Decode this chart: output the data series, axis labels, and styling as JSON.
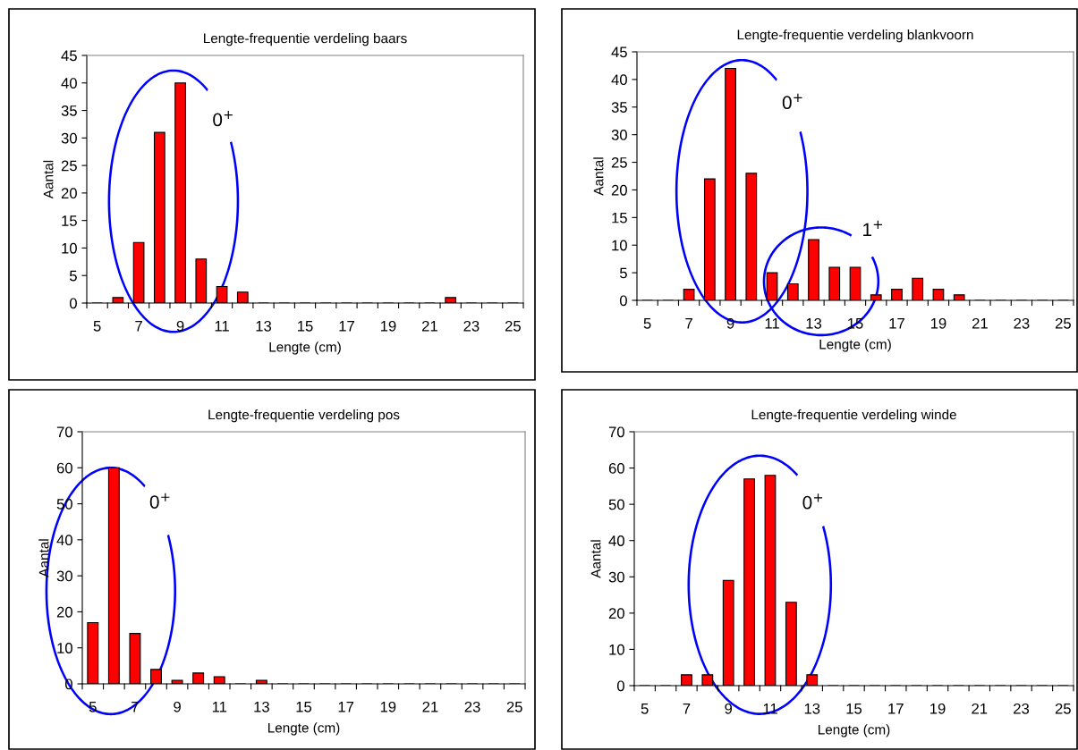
{
  "chart_data": [
    {
      "type": "bar",
      "title": "Lengte-frequentie verdeling baars",
      "xlabel": "Lengte (cm)",
      "ylabel": "Aantal",
      "categories": [
        "5",
        null,
        "7",
        null,
        "9",
        null,
        "11",
        null,
        "13",
        null,
        "15",
        null,
        "17",
        null,
        "19",
        null,
        "21",
        null,
        "23",
        null,
        "25"
      ],
      "values": [
        0,
        1,
        11,
        31,
        40,
        8,
        3,
        2,
        0,
        0,
        0,
        0,
        0,
        0,
        0,
        0,
        0,
        1,
        0,
        0,
        0
      ],
      "color": "#ff0000",
      "ylim": [
        0,
        45
      ],
      "yticks": [
        0,
        5,
        10,
        15,
        20,
        25,
        30,
        35,
        40,
        45
      ],
      "grid": false,
      "legend": false,
      "annotations": [
        "0$^{+}$"
      ]
    },
    {
      "type": "bar",
      "title": "Lengte-frequentie verdeling blankvoorn",
      "xlabel": "Lengte (cm)",
      "ylabel": "Aantal",
      "categories": [
        "5",
        null,
        "7",
        null,
        "9",
        null,
        "11",
        null,
        "13",
        null,
        "15",
        null,
        "17",
        null,
        "19",
        null,
        "21",
        null,
        "23",
        null,
        "25"
      ],
      "values": [
        0,
        0,
        2,
        22,
        42,
        23,
        5,
        3,
        11,
        6,
        6,
        1,
        2,
        4,
        2,
        1,
        0,
        0,
        0,
        0,
        0
      ],
      "color": "#ff0000",
      "ylim": [
        0,
        45
      ],
      "yticks": [
        0,
        5,
        10,
        15,
        20,
        25,
        30,
        35,
        40,
        45
      ],
      "grid": false,
      "legend": false,
      "annotations": [
        "0$^{+}$",
        "1$^{+}$"
      ]
    },
    {
      "type": "bar",
      "title": "Lengte-frequentie verdeling pos",
      "xlabel": "Lengte (cm)",
      "ylabel": "Aantal",
      "categories": [
        "5",
        null,
        "7",
        null,
        "9",
        null,
        "11",
        null,
        "13",
        null,
        "15",
        null,
        "17",
        null,
        "19",
        null,
        "21",
        null,
        "23",
        null,
        "25"
      ],
      "values": [
        17,
        60,
        14,
        4,
        1,
        3,
        2,
        0,
        1,
        0,
        0,
        0,
        0,
        0,
        0,
        0,
        0,
        0,
        0,
        0,
        0
      ],
      "color": "#ff0000",
      "ylim": [
        0,
        70
      ],
      "yticks": [
        0,
        10,
        20,
        30,
        40,
        50,
        60,
        70
      ],
      "grid": false,
      "legend": false,
      "annotations": [
        "0$^{+}$"
      ]
    },
    {
      "type": "bar",
      "title": "Lengte-frequentie verdeling winde",
      "xlabel": "Lengte (cm)",
      "ylabel": "Aantal",
      "categories": [
        "5",
        null,
        "7",
        null,
        "9",
        null,
        "11",
        null,
        "13",
        null,
        "15",
        null,
        "17",
        null,
        "19",
        null,
        "21",
        null,
        "23",
        null,
        "25"
      ],
      "values": [
        0,
        0,
        3,
        3,
        29,
        57,
        58,
        23,
        3,
        0,
        0,
        0,
        0,
        0,
        0,
        0,
        0,
        0,
        0,
        0,
        0
      ],
      "color": "#ff0000",
      "ylim": [
        0,
        70
      ],
      "yticks": [
        0,
        10,
        20,
        30,
        40,
        50,
        60,
        70
      ],
      "grid": false,
      "legend": false,
      "annotations": [
        "0$^{+}$"
      ]
    }
  ]
}
